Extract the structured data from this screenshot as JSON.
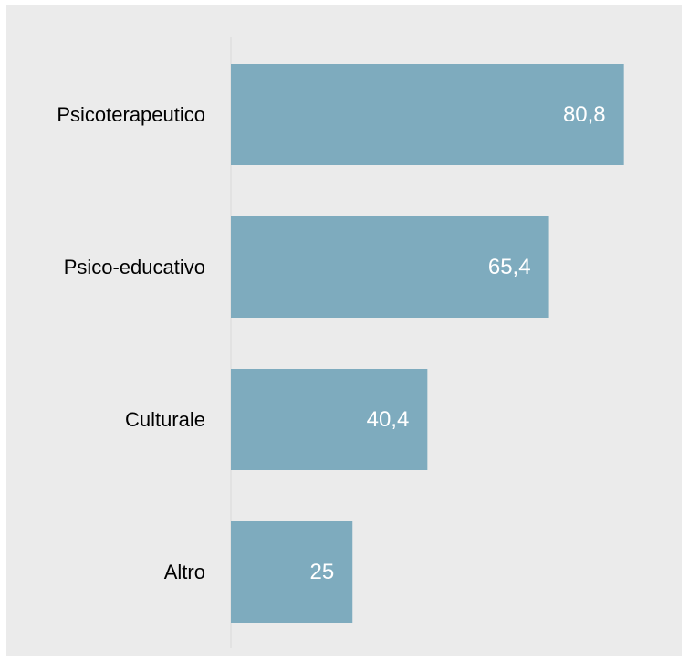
{
  "chart_data": {
    "type": "bar",
    "orientation": "horizontal",
    "categories": [
      "Psicoterapeutico",
      "Psico-educativo",
      "Culturale",
      "Altro"
    ],
    "values": [
      80.8,
      65.4,
      40.4,
      25
    ],
    "value_labels": [
      "80,8",
      "65,4",
      "40,4",
      "25"
    ],
    "xlim": [
      0,
      100
    ],
    "grid": false,
    "legend": "none",
    "bar_color": "#7eabbe",
    "background_color": "#ebebeb",
    "axis_color": "#d9d9d9"
  }
}
